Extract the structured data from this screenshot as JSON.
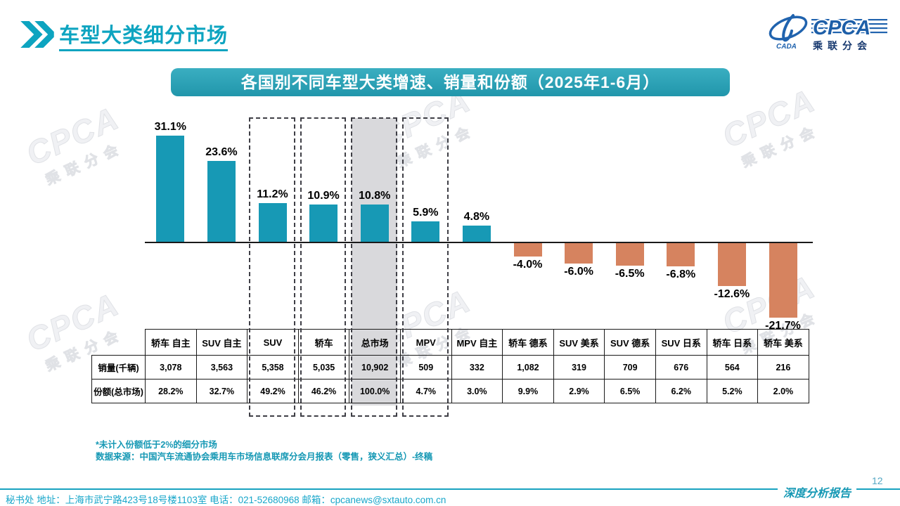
{
  "page": {
    "title": "车型大类细分市场",
    "page_number": "12",
    "report_label": "深度分析报告",
    "footer_contact": "秘书处  地址：上海市武宁路423号18号楼1103室 电话：021-52680968   邮箱：cpcanews@sxtauto.com.cn"
  },
  "logo": {
    "crda_text": "CADA",
    "cpca_text": "CPCA",
    "cn_text": "乘联分会"
  },
  "watermark": {
    "line1": "CPCA",
    "line2": "乘联分会"
  },
  "notes": {
    "line1": "*未计入份额低于2%的细分市场",
    "line2": "数据来源：中国汽车流通协会乘用车市场信息联席分会月报表（零售，狭义汇总）-终稿"
  },
  "chart_data": {
    "type": "bar",
    "title": "各国别不同车型大类增速、销量和份额（2025年1-6月）",
    "categories": [
      "轿车 自主",
      "SUV 自主",
      "SUV",
      "轿车",
      "总市场",
      "MPV",
      "MPV 自主",
      "轿车 德系",
      "SUV 美系",
      "SUV 德系",
      "SUV 日系",
      "轿车 日系",
      "轿车 美系"
    ],
    "series": [
      {
        "name": "增速(%)",
        "values": [
          31.1,
          23.6,
          11.2,
          10.9,
          10.8,
          5.9,
          4.8,
          -4.0,
          -6.0,
          -6.5,
          -6.8,
          -12.6,
          -21.7
        ]
      }
    ],
    "value_labels": [
      "31.1%",
      "23.6%",
      "11.2%",
      "10.9%",
      "10.8%",
      "5.9%",
      "4.8%",
      "-4.0%",
      "-6.0%",
      "-6.5%",
      "-6.8%",
      "-12.6%",
      "-21.7%"
    ],
    "table": {
      "row_headers": [
        "销量(千辆)",
        "份额(总市场)"
      ],
      "sales_thousands": [
        "3,078",
        "3,563",
        "5,358",
        "5,035",
        "10,902",
        "509",
        "332",
        "1,082",
        "319",
        "709",
        "676",
        "564",
        "216"
      ],
      "share_of_total": [
        "28.2%",
        "32.7%",
        "49.2%",
        "46.2%",
        "100.0%",
        "4.7%",
        "3.0%",
        "9.9%",
        "2.9%",
        "6.5%",
        "6.2%",
        "5.2%",
        "2.0%"
      ]
    },
    "highlighted_dashed_columns": [
      "SUV",
      "轿车",
      "总市场",
      "MPV"
    ],
    "gray_filled_column": "总市场",
    "colors": {
      "positive": "#1799b5",
      "negative": "#d6835f",
      "highlight_fill": "#d9d9dc"
    },
    "ylim": [
      -25,
      35
    ],
    "grid": false,
    "legend_position": "none"
  }
}
